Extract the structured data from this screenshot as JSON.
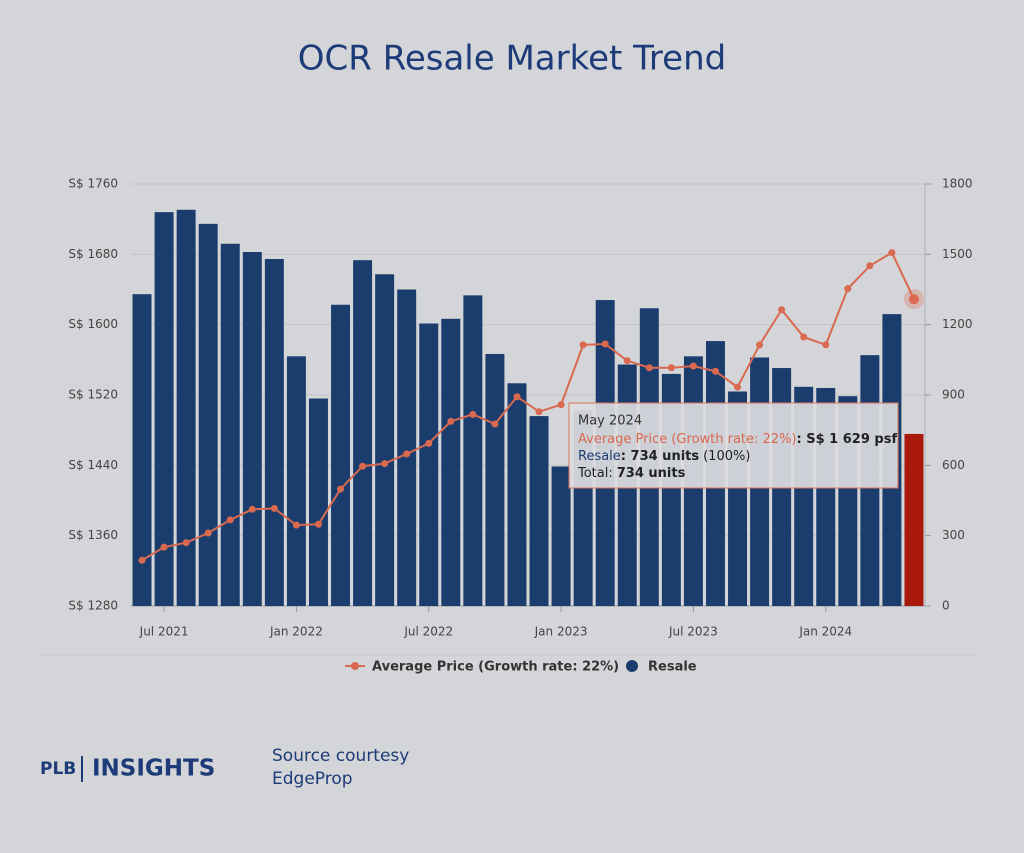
{
  "chart_data": {
    "type": "bar-line",
    "title": "OCR Resale Market Trend",
    "categories": [
      null,
      "Jul 2021",
      null,
      null,
      null,
      null,
      null,
      "Jan 2022",
      null,
      null,
      null,
      null,
      null,
      "Jul 2022",
      null,
      null,
      null,
      null,
      null,
      "Jan 2023",
      null,
      null,
      null,
      null,
      null,
      "Jul 2023",
      null,
      null,
      null,
      null,
      null,
      "Jan 2024",
      null,
      null,
      null,
      null
    ],
    "series": [
      {
        "name": "Resale",
        "type": "bar",
        "axis": "y2",
        "color": "#1b3d6e",
        "values": [
          1330,
          1680,
          1690,
          1630,
          1545,
          1510,
          1480,
          1065,
          885,
          1285,
          1475,
          1415,
          1350,
          1205,
          1225,
          1325,
          1075,
          950,
          810,
          595,
          835,
          1305,
          1030,
          1270,
          990,
          1065,
          1130,
          915,
          1060,
          1015,
          935,
          930,
          895,
          1070,
          1245,
          734
        ],
        "colors": [
          null,
          null,
          null,
          null,
          null,
          null,
          null,
          null,
          null,
          null,
          null,
          null,
          null,
          null,
          null,
          null,
          null,
          null,
          null,
          null,
          null,
          null,
          null,
          null,
          null,
          null,
          null,
          null,
          null,
          null,
          null,
          null,
          null,
          null,
          null,
          "#a8180b"
        ]
      },
      {
        "name": "Average Price (Growth rate: 22%)",
        "type": "line",
        "axis": "y",
        "color": "#d9694f",
        "values": [
          1332,
          1347,
          1352,
          1363,
          1378,
          1390,
          1391,
          1372,
          1373,
          1413,
          1439,
          1442,
          1453,
          1465,
          1490,
          1498,
          1487,
          1518,
          1501,
          1509,
          1577,
          1578,
          1559,
          1551,
          1551,
          1553,
          1547,
          1529,
          1577,
          1617,
          1586,
          1577,
          1641,
          1667,
          1682,
          1629
        ]
      }
    ],
    "ylim": [
      1280,
      1760
    ],
    "yticks": [
      {
        "value": 1280,
        "label": "S$ 1280"
      },
      {
        "value": 1360,
        "label": "S$ 1360"
      },
      {
        "value": 1440,
        "label": "S$ 1440"
      },
      {
        "value": 1520,
        "label": "S$ 1520"
      },
      {
        "value": 1600,
        "label": "S$ 1600"
      },
      {
        "value": 1680,
        "label": "S$ 1680"
      },
      {
        "value": 1760,
        "label": "S$ 1760"
      }
    ],
    "y2lim": [
      0,
      1800
    ],
    "y2ticks": [
      0,
      300,
      600,
      900,
      1200,
      1500,
      1800
    ],
    "grid": true,
    "tooltip": {
      "title": "May 2024",
      "price_label": "Average Price (Growth rate: 22%)",
      "price_value": ": S$ 1 629 psf",
      "resale_label": "Resale",
      "resale_value": ": 734 units",
      "resale_pct": "(100%)",
      "total_label": "Total:",
      "total_value": "734 units"
    }
  },
  "footer": {
    "brand": "PLB",
    "brand_sub": "INSIGHTS",
    "source_label": "Source courtesy",
    "source": "EdgeProp"
  }
}
